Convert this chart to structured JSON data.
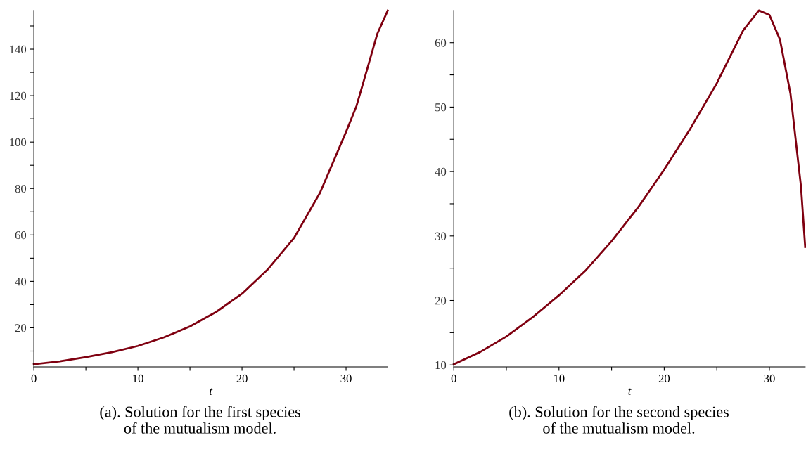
{
  "chart_data": [
    {
      "type": "line",
      "xlabel": "t",
      "annotations": [
        "(a). Solution for the first species\nof the mutualism model."
      ],
      "marker": "none",
      "line_style": "solid",
      "grid": false,
      "legend": false,
      "x": [
        0,
        2.5,
        5,
        7.5,
        10,
        12.5,
        15,
        17.5,
        20,
        22.5,
        25,
        27.5,
        30,
        31,
        32,
        33,
        34
      ],
      "series": [
        {
          "color": "#7f0010",
          "values": [
            4.3,
            5.6,
            7.4,
            9.5,
            12.2,
            15.9,
            20.6,
            26.8,
            34.7,
            45.3,
            58.7,
            78.2,
            104.4,
            115.5,
            131,
            146.6,
            156.6
          ]
        }
      ],
      "xlim": [
        0,
        34
      ],
      "ylim": [
        3.2,
        156.7
      ],
      "xticks": [
        0,
        {
          "value": 5,
          "label": null
        },
        10,
        {
          "value": 15,
          "label": null
        },
        20,
        {
          "value": 25,
          "label": null
        },
        30
      ],
      "yticks": [
        {
          "value": 10,
          "label": null
        },
        20,
        {
          "value": 30,
          "label": null
        },
        40,
        {
          "value": 50,
          "label": null
        },
        60,
        {
          "value": 70,
          "label": null
        },
        80,
        {
          "value": 90,
          "label": null
        },
        100,
        {
          "value": 110,
          "label": null
        },
        120,
        {
          "value": 130,
          "label": null
        },
        140,
        {
          "value": 150,
          "label": null
        }
      ]
    },
    {
      "type": "line",
      "xlabel": "t",
      "annotations": [
        "(b). Solution for the second species\nof the mutualism model."
      ],
      "marker": "none",
      "line_style": "solid",
      "grid": false,
      "legend": false,
      "x": [
        0,
        2.5,
        5,
        7.5,
        10,
        12.5,
        15,
        17.5,
        20,
        22.5,
        25,
        27.5,
        29,
        30,
        31,
        32,
        33,
        33.4
      ],
      "series": [
        {
          "color": "#7f0010",
          "values": [
            10.1,
            12.0,
            14.4,
            17.4,
            20.8,
            24.6,
            29.2,
            34.4,
            40.3,
            46.7,
            53.7,
            61.9,
            65.0,
            64.3,
            60.5,
            52.1,
            37.7,
            28.3
          ]
        }
      ],
      "xlim": [
        0,
        33.4
      ],
      "ylim": [
        9.7,
        65.0
      ],
      "xticks": [
        0,
        {
          "value": 5,
          "label": null
        },
        10,
        {
          "value": 15,
          "label": null
        },
        20,
        {
          "value": 25,
          "label": null
        },
        30
      ],
      "yticks": [
        10,
        {
          "value": 15,
          "label": null
        },
        20,
        {
          "value": 25,
          "label": null
        },
        30,
        {
          "value": 35,
          "label": null
        },
        40,
        {
          "value": 45,
          "label": null
        },
        50,
        {
          "value": 55,
          "label": null
        },
        60
      ]
    }
  ]
}
